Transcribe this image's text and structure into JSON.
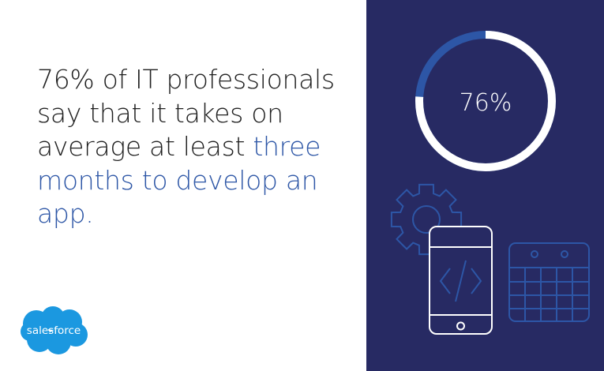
{
  "statement": {
    "text_plain": "76% of IT professionals say that it takes on average at least ",
    "text_highlight": "three months to develop an app."
  },
  "donut": {
    "label": "76%",
    "percent": 76
  },
  "logo": {
    "text": "salesforce"
  },
  "icons": [
    "gear-icon",
    "mobile-code-icon",
    "calendar-icon"
  ],
  "colors": {
    "panel": "#272a63",
    "accent": "#2d56a6",
    "logo": "#1b98e0",
    "text": "#1f1f1f"
  }
}
